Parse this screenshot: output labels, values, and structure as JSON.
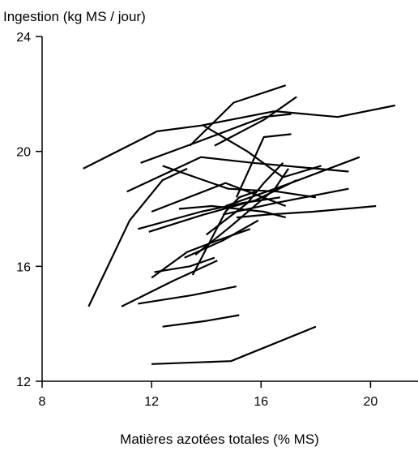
{
  "chart_data": {
    "type": "line",
    "title": "",
    "xlabel": "Matières azotées totales (% MS)",
    "ylabel": "Ingestion  (kg MS / jour)",
    "xlim": [
      8,
      22
    ],
    "ylim": [
      12,
      24
    ],
    "xticks": [
      8,
      12,
      16,
      20
    ],
    "yticks": [
      12,
      16,
      20,
      24
    ],
    "xtick_labels": [
      "8",
      "12",
      "16",
      "20"
    ],
    "ytick_labels": [
      "12",
      "16",
      "20",
      "24"
    ],
    "grid": false,
    "legend": "none",
    "line_color": "#000000",
    "series": [
      {
        "points": [
          [
            9.7,
            14.6
          ],
          [
            11.2,
            17.6
          ],
          [
            12.4,
            19.0
          ],
          [
            13.3,
            19.4
          ]
        ]
      },
      {
        "points": [
          [
            9.5,
            19.4
          ],
          [
            12.2,
            20.7
          ],
          [
            13.8,
            20.9
          ],
          [
            16.5,
            21.4
          ],
          [
            18.8,
            21.2
          ],
          [
            20.9,
            21.6
          ]
        ]
      },
      {
        "points": [
          [
            11.6,
            19.6
          ],
          [
            13.6,
            20.3
          ],
          [
            16.1,
            21.2
          ],
          [
            17.1,
            21.3
          ]
        ]
      },
      {
        "points": [
          [
            13.4,
            20.2
          ],
          [
            15.0,
            21.7
          ],
          [
            16.9,
            22.3
          ]
        ]
      },
      {
        "points": [
          [
            13.9,
            20.9
          ],
          [
            15.5,
            20.0
          ],
          [
            16.8,
            19.1
          ],
          [
            18.2,
            19.5
          ]
        ]
      },
      {
        "points": [
          [
            14.3,
            20.2
          ],
          [
            16.1,
            21.1
          ],
          [
            17.3,
            21.9
          ]
        ]
      },
      {
        "points": [
          [
            11.1,
            18.6
          ],
          [
            13.8,
            19.8
          ],
          [
            15.7,
            19.6
          ],
          [
            19.2,
            19.3
          ]
        ]
      },
      {
        "points": [
          [
            12.4,
            19.5
          ],
          [
            14.8,
            18.7
          ],
          [
            16.6,
            18.6
          ],
          [
            18.0,
            18.4
          ]
        ]
      },
      {
        "points": [
          [
            12.0,
            17.9
          ],
          [
            14.7,
            18.9
          ],
          [
            15.8,
            18.5
          ],
          [
            16.9,
            18.1
          ]
        ]
      },
      {
        "points": [
          [
            13.0,
            18.0
          ],
          [
            14.2,
            18.1
          ],
          [
            16.1,
            17.9
          ],
          [
            16.9,
            17.7
          ]
        ]
      },
      {
        "points": [
          [
            11.5,
            17.3
          ],
          [
            13.8,
            17.9
          ],
          [
            15.3,
            18.2
          ],
          [
            16.7,
            18.4
          ]
        ]
      },
      {
        "points": [
          [
            11.9,
            17.2
          ],
          [
            13.9,
            17.8
          ],
          [
            15.8,
            18.3
          ],
          [
            17.3,
            19.0
          ]
        ]
      },
      {
        "points": [
          [
            15.1,
            17.7
          ],
          [
            16.2,
            17.8
          ],
          [
            17.9,
            17.9
          ],
          [
            20.2,
            18.1
          ]
        ]
      },
      {
        "points": [
          [
            14.6,
            17.8
          ],
          [
            16.5,
            18.2
          ],
          [
            19.2,
            18.7
          ]
        ]
      },
      {
        "points": [
          [
            14.7,
            18.1
          ],
          [
            16.8,
            18.8
          ],
          [
            19.6,
            19.8
          ]
        ]
      },
      {
        "points": [
          [
            13.6,
            16.4
          ],
          [
            14.9,
            17.4
          ],
          [
            16.5,
            18.7
          ],
          [
            17.0,
            19.4
          ]
        ]
      },
      {
        "points": [
          [
            13.5,
            15.7
          ],
          [
            14.7,
            17.9
          ],
          [
            15.2,
            18.4
          ],
          [
            15.8,
            18.6
          ]
        ]
      },
      {
        "points": [
          [
            15.1,
            18.4
          ],
          [
            16.1,
            20.5
          ],
          [
            17.1,
            20.6
          ]
        ]
      },
      {
        "points": [
          [
            14.0,
            17.1
          ],
          [
            15.5,
            18.2
          ],
          [
            16.1,
            18.9
          ],
          [
            16.8,
            19.6
          ]
        ]
      },
      {
        "points": [
          [
            13.2,
            16.3
          ],
          [
            14.6,
            16.9
          ],
          [
            15.9,
            17.6
          ]
        ]
      },
      {
        "points": [
          [
            12.0,
            15.6
          ],
          [
            13.3,
            16.5
          ],
          [
            14.4,
            16.9
          ],
          [
            15.6,
            17.3
          ]
        ]
      },
      {
        "points": [
          [
            12.1,
            15.8
          ],
          [
            13.4,
            16.0
          ],
          [
            14.3,
            16.3
          ]
        ]
      },
      {
        "points": [
          [
            10.9,
            14.6
          ],
          [
            12.8,
            15.5
          ],
          [
            14.4,
            16.2
          ]
        ]
      },
      {
        "points": [
          [
            11.5,
            14.7
          ],
          [
            13.5,
            15.0
          ],
          [
            15.1,
            15.3
          ]
        ]
      },
      {
        "points": [
          [
            12.4,
            13.9
          ],
          [
            14.0,
            14.1
          ],
          [
            15.2,
            14.3
          ]
        ]
      },
      {
        "points": [
          [
            12.0,
            12.6
          ],
          [
            14.9,
            12.7
          ],
          [
            18.0,
            13.9
          ]
        ]
      }
    ]
  }
}
